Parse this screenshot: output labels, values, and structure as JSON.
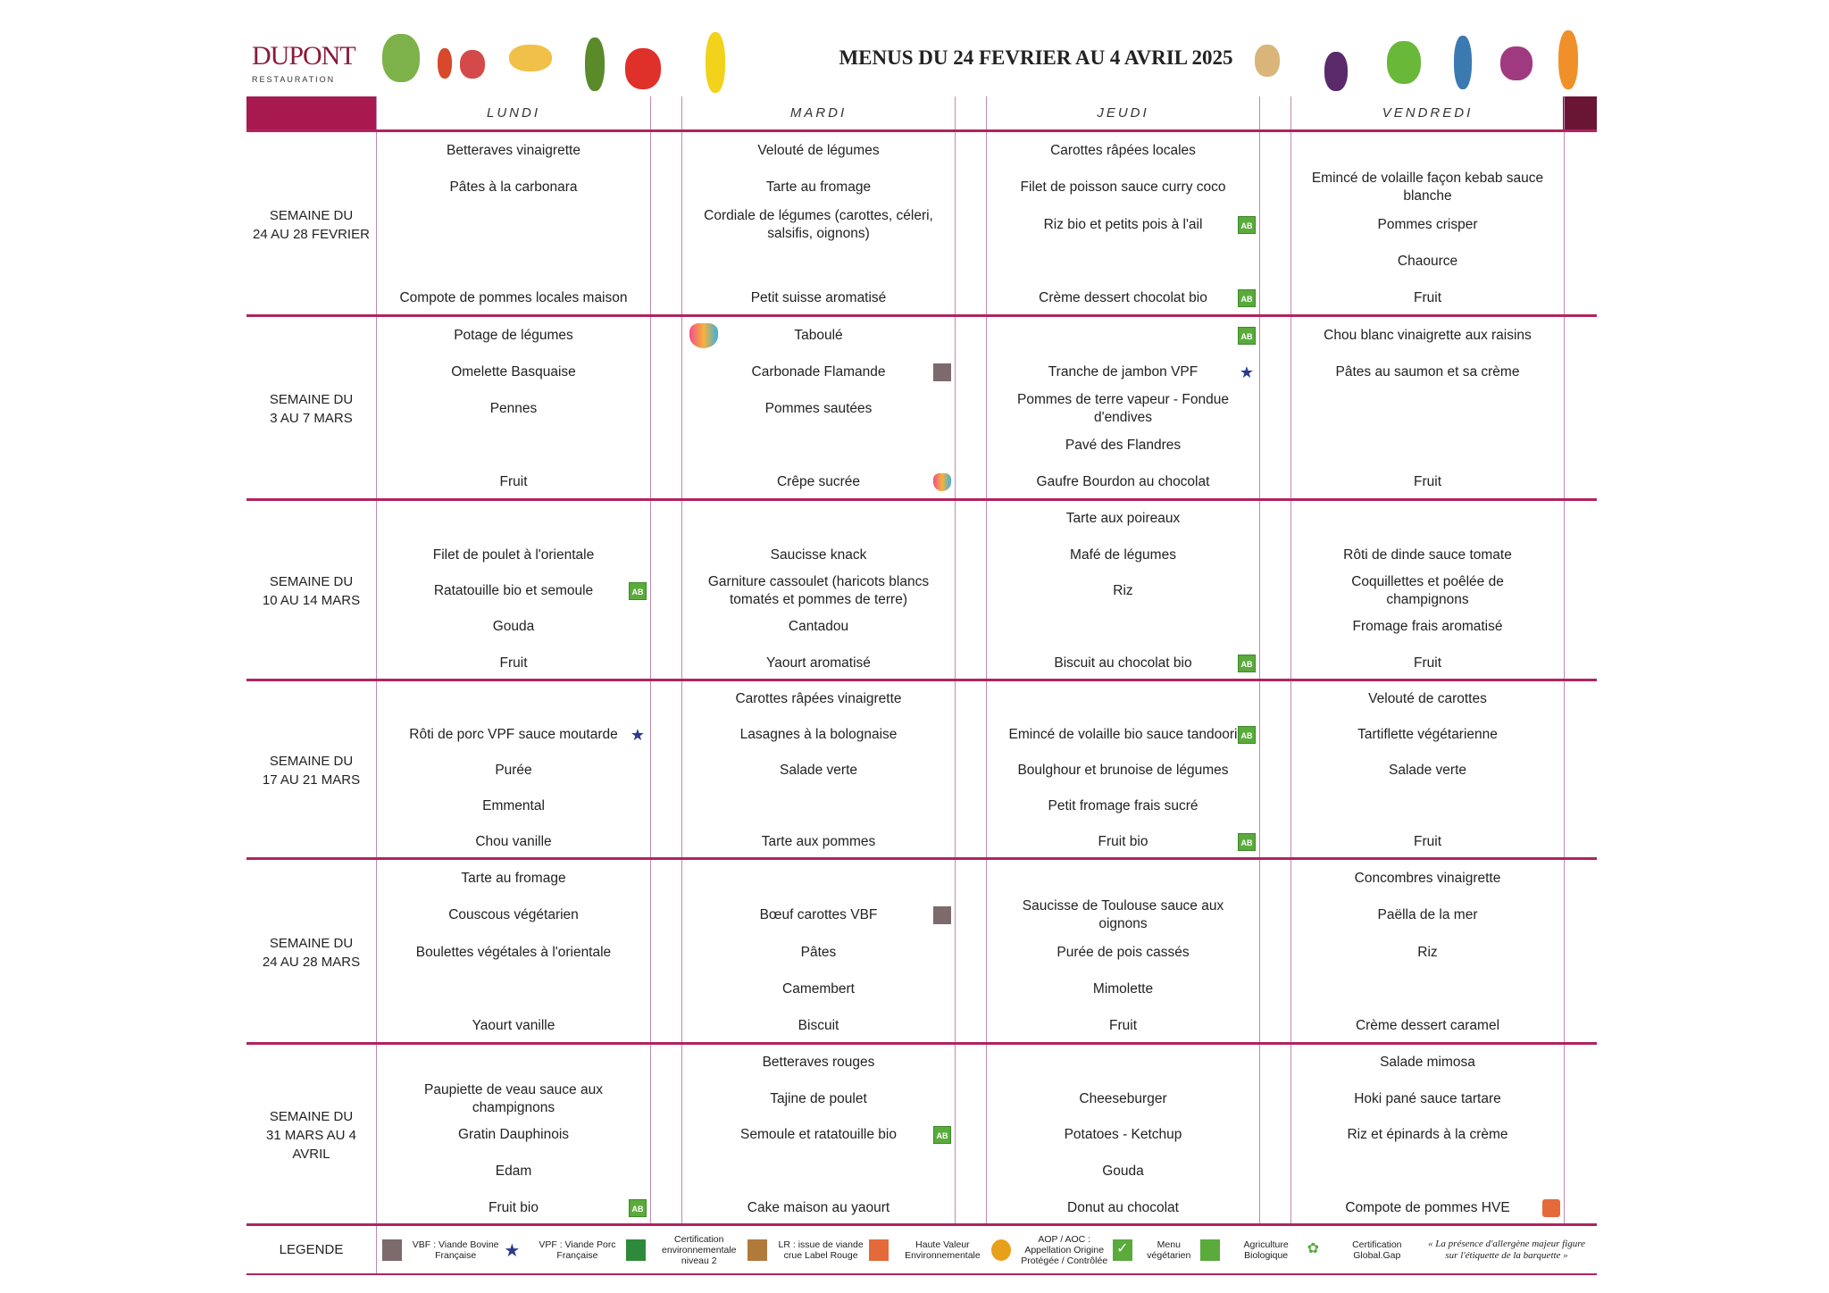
{
  "header": {
    "brand": "DUPONT",
    "brand_sub": "RESTAURATION",
    "title": "MENUS DU 24 FEVRIER AU 4 AVRIL 2025"
  },
  "colors": {
    "accent": "#b0245f",
    "header_block": "#a8194f",
    "header_stub": "#6b1535",
    "divider": "#c08ab5"
  },
  "days": [
    "LUNDI",
    "MARDI",
    "JEUDI",
    "VENDREDI"
  ],
  "weeks": [
    {
      "label": "SEMAINE DU\n24 AU 28 FEVRIER",
      "days": [
        [
          "Betteraves vinaigrette",
          "Pâtes à la carbonara",
          "",
          "",
          "Compote de pommes locales maison"
        ],
        [
          "Velouté de légumes",
          "Tarte au fromage",
          "Cordiale de légumes (carottes, céleri, salsifis, oignons)",
          "",
          "Petit suisse aromatisé"
        ],
        [
          "Carottes râpées locales",
          "Filet de poisson sauce curry coco",
          {
            "t": "Riz bio et petits pois à l'ail",
            "icon": "bio"
          },
          "",
          {
            "t": "Crème dessert chocolat bio",
            "icon": "bio"
          }
        ],
        [
          "",
          "Emincé de volaille façon kebab sauce blanche",
          "Pommes crisper",
          "Chaource",
          "Fruit"
        ]
      ]
    },
    {
      "label": "SEMAINE DU\n3 AU 7 MARS",
      "days": [
        [
          "Potage de légumes",
          "Omelette Basquaise",
          "Pennes",
          "",
          "Fruit"
        ],
        [
          {
            "t": "Taboulé",
            "icon": "mask-left"
          },
          {
            "t": "Carbonade Flamande",
            "icon": "vbf"
          },
          "Pommes sautées",
          "",
          {
            "t": "Crêpe sucrée",
            "icon": "mask"
          }
        ],
        [
          {
            "t": "",
            "icon": "bio"
          },
          {
            "t": "Tranche de jambon VPF",
            "icon": "vpf"
          },
          "Pommes de terre vapeur - Fondue d'endives",
          "Pavé des Flandres",
          "Gaufre Bourdon au chocolat"
        ],
        [
          "Chou blanc vinaigrette aux raisins",
          "Pâtes au saumon et sa crème",
          "",
          "",
          "Fruit"
        ]
      ]
    },
    {
      "label": "SEMAINE DU\n10 AU 14 MARS",
      "days": [
        [
          "",
          "Filet de poulet à l'orientale",
          {
            "t": "Ratatouille bio et semoule",
            "icon": "bio"
          },
          "Gouda",
          "Fruit"
        ],
        [
          "",
          "Saucisse knack",
          "Garniture cassoulet (haricots blancs tomatés et pommes de terre)",
          "Cantadou",
          "Yaourt aromatisé"
        ],
        [
          "Tarte aux poireaux",
          "Mafé de légumes",
          "Riz",
          "",
          {
            "t": "Biscuit au chocolat bio",
            "icon": "bio"
          }
        ],
        [
          "",
          "Rôti de dinde sauce tomate",
          "Coquillettes et poêlée de champignons",
          "Fromage frais aromatisé",
          "Fruit"
        ]
      ]
    },
    {
      "label": "SEMAINE DU\n17 AU 21 MARS",
      "days": [
        [
          "",
          {
            "t": "Rôti de porc VPF sauce moutarde",
            "icon": "vpf"
          },
          "Purée",
          "Emmental",
          "Chou vanille"
        ],
        [
          "Carottes râpées vinaigrette",
          "Lasagnes à la bolognaise",
          "Salade verte",
          "",
          "Tarte aux pommes"
        ],
        [
          "",
          {
            "t": "Emincé de volaille bio sauce tandoori",
            "icon": "bio"
          },
          "Boulghour et brunoise de légumes",
          "Petit fromage frais sucré",
          {
            "t": "Fruit bio",
            "icon": "bio"
          }
        ],
        [
          "Velouté de carottes",
          "Tartiflette végétarienne",
          "Salade verte",
          "",
          "Fruit"
        ]
      ]
    },
    {
      "label": "SEMAINE DU\n24 AU 28 MARS",
      "days": [
        [
          "Tarte au fromage",
          "Couscous végétarien",
          "Boulettes végétales à l'orientale",
          "",
          "Yaourt vanille"
        ],
        [
          "",
          {
            "t": "Bœuf carottes VBF",
            "icon": "vbf"
          },
          "Pâtes",
          "Camembert",
          "Biscuit"
        ],
        [
          "",
          "Saucisse de Toulouse sauce aux oignons",
          "Purée de pois cassés",
          "Mimolette",
          "Fruit"
        ],
        [
          "Concombres vinaigrette",
          "Paëlla de la mer",
          "Riz",
          "",
          "Crème dessert caramel"
        ]
      ]
    },
    {
      "label": "SEMAINE DU\n31 MARS AU 4\nAVRIL",
      "days": [
        [
          "",
          "Paupiette de veau sauce aux champignons",
          "Gratin Dauphinois",
          "Edam",
          {
            "t": "Fruit bio",
            "icon": "bio"
          }
        ],
        [
          "Betteraves rouges",
          "Tajine de poulet",
          {
            "t": "Semoule et ratatouille bio",
            "icon": "bio"
          },
          "",
          "Cake maison au yaourt"
        ],
        [
          "",
          "Cheeseburger",
          "Potatoes - Ketchup",
          "Gouda",
          "Donut au chocolat"
        ],
        [
          "Salade mimosa",
          "Hoki pané sauce tartare",
          "Riz et épinards à la crème",
          "",
          {
            "t": "Compote de pommes HVE",
            "icon": "hve"
          }
        ]
      ]
    }
  ],
  "legend": {
    "title": "LEGENDE",
    "items": [
      {
        "icon": "vbf",
        "text": "VBF : Viande Bovine Française"
      },
      {
        "icon": "vpf",
        "text": "VPF : Viande Porc Française"
      },
      {
        "icon": "hve-niveau2",
        "text": "Certification environnementale niveau 2"
      },
      {
        "icon": "label-rouge",
        "text": "LR : issue de viande crue Label Rouge"
      },
      {
        "icon": "hve",
        "text": "Haute Valeur Environnementale"
      },
      {
        "icon": "aop",
        "text": "AOP / AOC : Appellation Origine Protégée / Contrôlée"
      },
      {
        "icon": "vegetarian",
        "text": "Menu végétarien"
      },
      {
        "icon": "bio",
        "text": "Agriculture Biologique"
      },
      {
        "icon": "globalgap",
        "text": "Certification Global.Gap"
      }
    ],
    "note": "« La présence d'allergène majeur figure sur l'étiquette de la barquette »"
  }
}
